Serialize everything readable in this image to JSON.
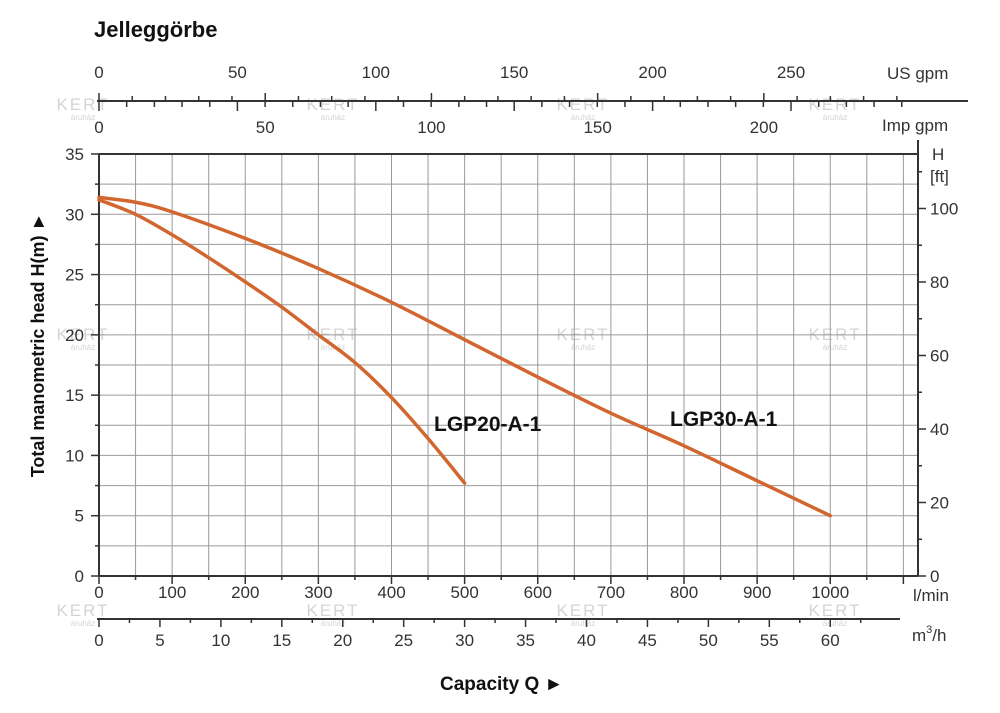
{
  "chart_data": {
    "type": "line",
    "title": "Jelleggörbe",
    "ylabel": "Total manometric head H(m) ►",
    "xlabel": "Capacity Q  ►",
    "ylim": [
      0,
      35
    ],
    "y_ticks": [
      0,
      5,
      10,
      15,
      20,
      25,
      30,
      35
    ],
    "xlim_l_min": [
      0,
      1120
    ],
    "x_ticks_l_min": [
      0,
      100,
      200,
      300,
      400,
      500,
      600,
      700,
      800,
      900,
      1000
    ],
    "x_unit_l_min": "l/min",
    "x_ticks_m3h": [
      0,
      5,
      10,
      15,
      20,
      25,
      30,
      35,
      40,
      45,
      50,
      55,
      60
    ],
    "x_unit_m3h_base": "m",
    "x_unit_m3h_sup": "3",
    "x_unit_m3h_tail": "/h",
    "x_ticks_us_gpm": [
      0,
      50,
      100,
      150,
      200,
      250
    ],
    "x_unit_us_gpm": "US gpm",
    "x_ticks_imp_gpm": [
      0,
      50,
      100,
      150,
      200
    ],
    "x_unit_imp_gpm": "Imp gpm",
    "y_right_unit_line1": "H",
    "y_right_unit_line2": "[ft]",
    "y_ticks_ft": [
      0,
      20,
      40,
      60,
      80,
      100
    ],
    "grid": true,
    "line_color": "#d2662f",
    "series": [
      {
        "name": "LGP20-A-1",
        "x": [
          0,
          50,
          100,
          150,
          200,
          250,
          300,
          350,
          400,
          450,
          500
        ],
        "y": [
          31.2,
          30.0,
          28.3,
          26.4,
          24.4,
          22.3,
          20.0,
          17.7,
          14.8,
          11.4,
          7.7
        ]
      },
      {
        "name": "LGP30-A-1",
        "x": [
          0,
          50,
          100,
          200,
          300,
          400,
          500,
          600,
          700,
          800,
          900,
          1000
        ],
        "y": [
          31.4,
          31.0,
          30.2,
          28.0,
          25.5,
          22.7,
          19.6,
          16.5,
          13.5,
          10.8,
          7.9,
          5.0
        ]
      }
    ],
    "watermark": {
      "main": "KERT",
      "sub": "áruház"
    }
  }
}
